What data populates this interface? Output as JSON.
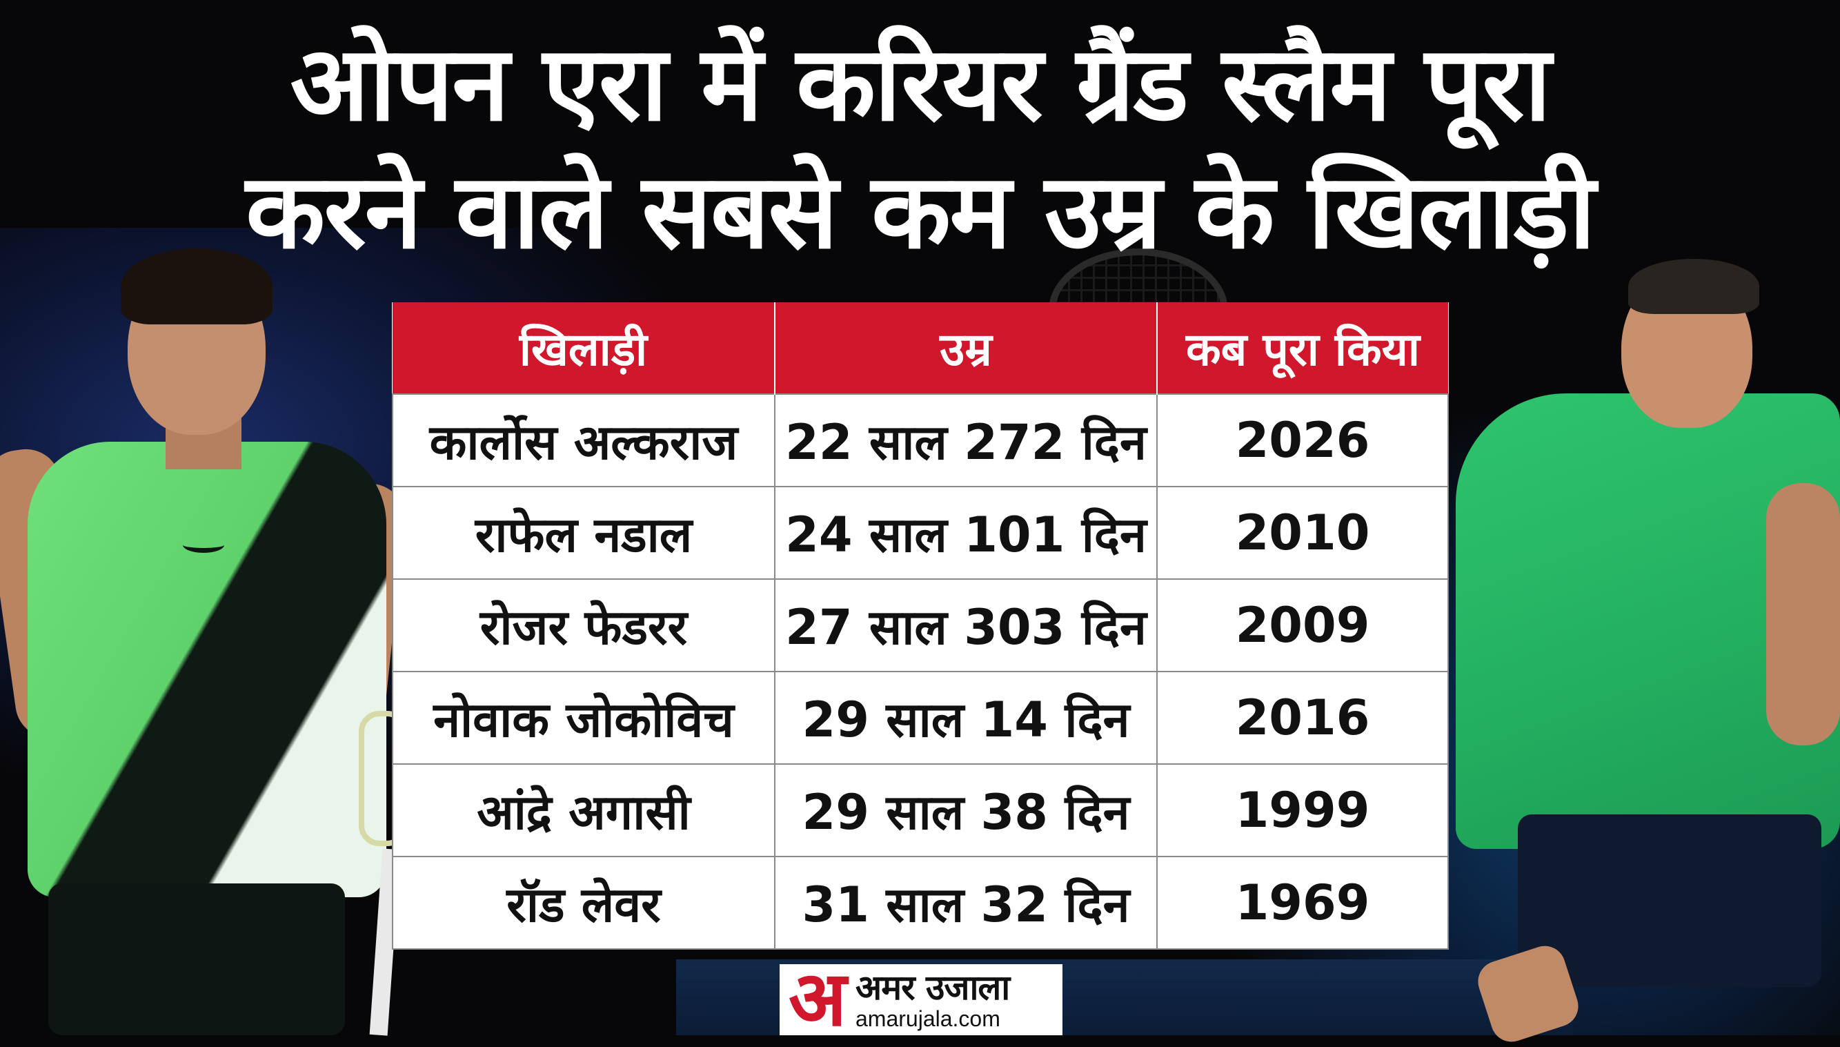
{
  "headline": {
    "line1": "ओपन एरा में करियर ग्रैंड स्लैम पूरा",
    "line2": "करने वाले सबसे कम उम्र के खिलाड़ी"
  },
  "table": {
    "headers": [
      "खिलाड़ी",
      "उम्र",
      "कब पूरा किया"
    ],
    "rows": [
      [
        "कार्लोस अल्कराज",
        "22 साल 272 दिन",
        "2026"
      ],
      [
        "राफेल नडाल",
        "24 साल 101 दिन",
        "2010"
      ],
      [
        "रोजर फेडरर",
        "27 साल 303 दिन",
        "2009"
      ],
      [
        "नोवाक जोकोविच",
        "29 साल 14 दिन",
        "2016"
      ],
      [
        "आंद्रे अगासी",
        "29 साल 38 दिन",
        "1999"
      ],
      [
        "रॉड लेवर",
        "31 साल 32 दिन",
        "1969"
      ]
    ]
  },
  "logo": {
    "mark": "अ",
    "brand": "अमर उजाला",
    "domain": "amarujala.com"
  },
  "colors": {
    "header_red": "#d1172c",
    "background": "#070709",
    "shirt_left": "#6fe07a",
    "shirt_right": "#2fc46d"
  }
}
